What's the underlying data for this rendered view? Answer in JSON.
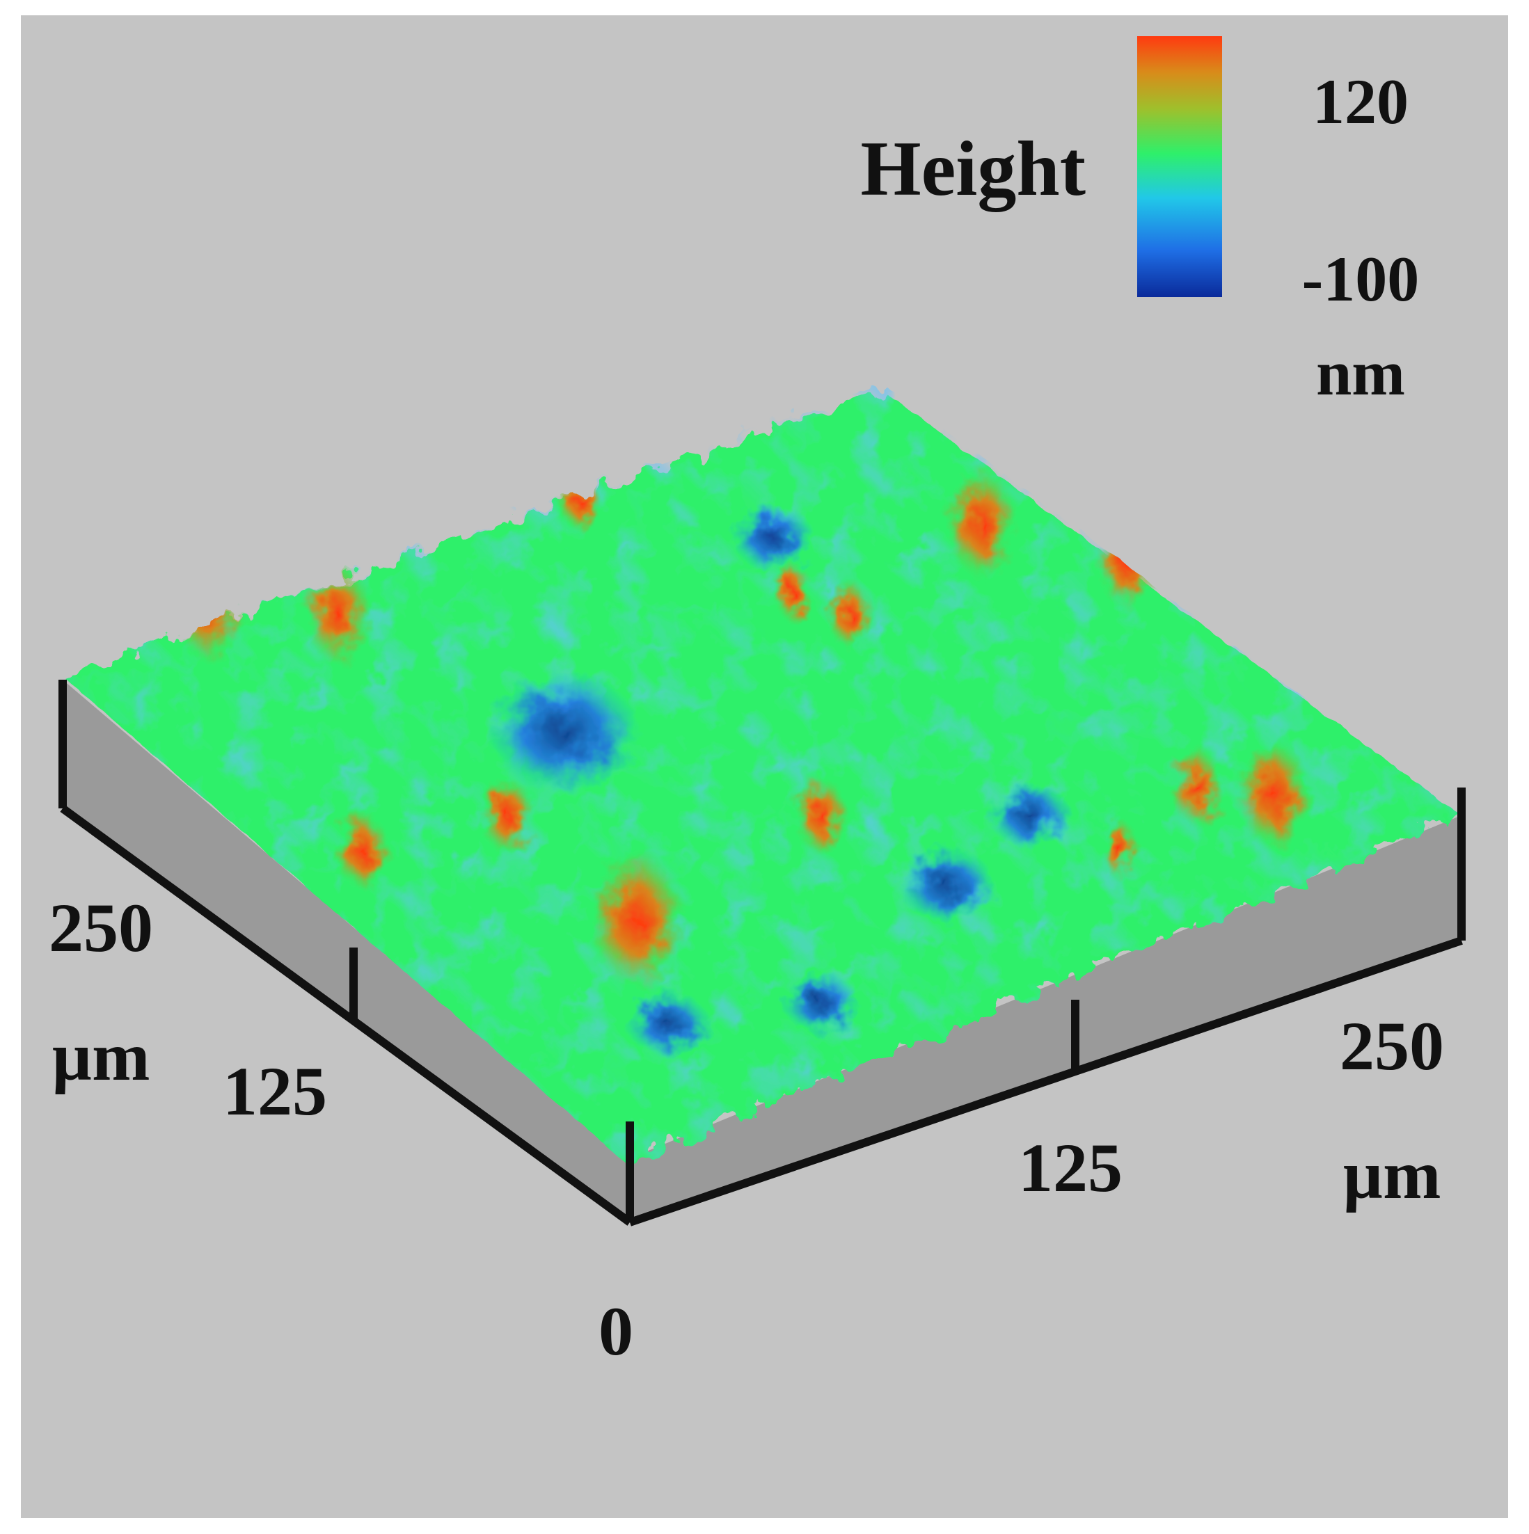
{
  "chart_data": {
    "type": "surface-3d",
    "colorbar": {
      "title": "Height",
      "max_label": "120",
      "min_label": "-100",
      "unit": "nm",
      "range": [
        -100,
        120
      ],
      "colormap": [
        "#0a2a9a",
        "#1f6fe6",
        "#21c8e8",
        "#2ef06a",
        "#9ec02c",
        "#d88c1a",
        "#ff3a10"
      ]
    },
    "axes": {
      "left": {
        "tick_labels": [
          "125",
          "250"
        ],
        "unit": "µm",
        "range": [
          0,
          250
        ]
      },
      "right": {
        "tick_labels": [
          "125",
          "250"
        ],
        "unit": "µm",
        "range": [
          0,
          250
        ]
      },
      "origin_label": "0"
    },
    "background_color": "#c4c4c4",
    "side_wall_color": "#9a9a9a"
  }
}
